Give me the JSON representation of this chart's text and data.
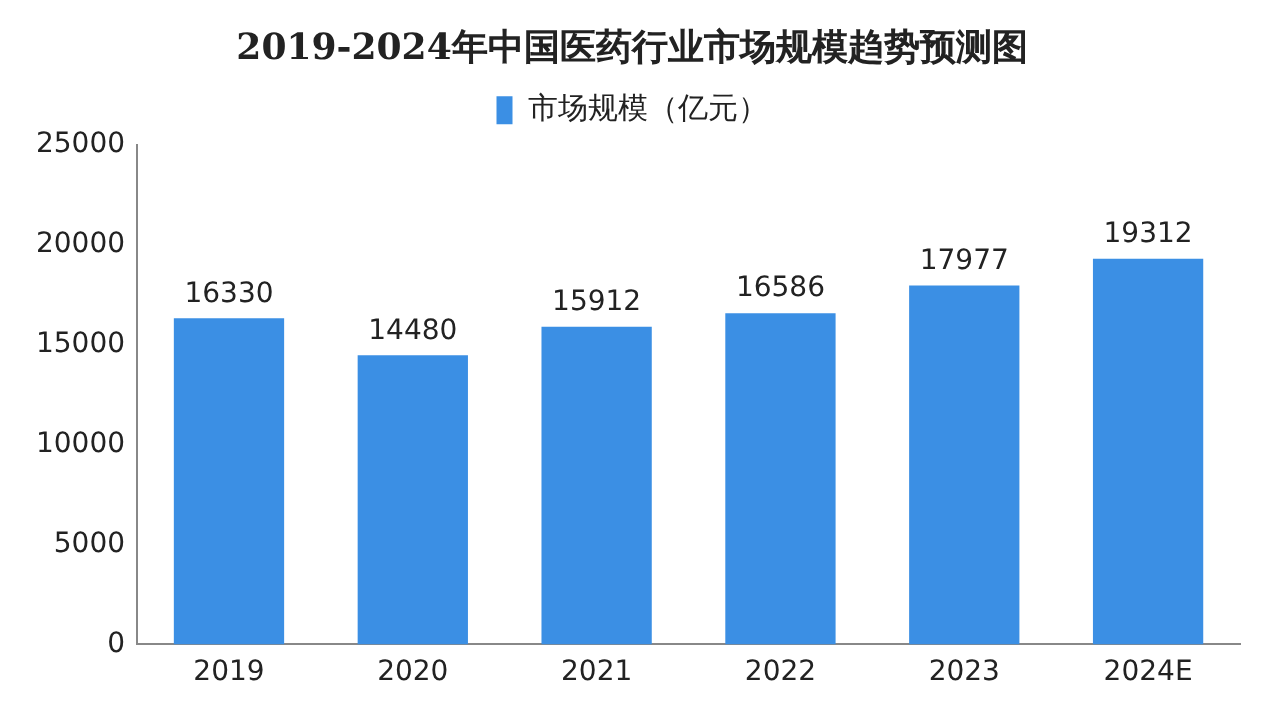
{
  "chart_data": {
    "type": "bar",
    "title": "2019-2024年中国医药行业市场规模趋势预测图",
    "categories": [
      "2019",
      "2020",
      "2021",
      "2022",
      "2023",
      "2024E"
    ],
    "series": [
      {
        "name": "市场规模（亿元）",
        "color": "#3b8fe4",
        "values": [
          16330,
          14480,
          15912,
          16586,
          17977,
          19312
        ]
      }
    ],
    "ylim": [
      0,
      25000
    ],
    "yticks": [
      0,
      5000,
      10000,
      15000,
      20000,
      25000
    ],
    "grid": false,
    "legend": "top",
    "data_labels": true
  }
}
